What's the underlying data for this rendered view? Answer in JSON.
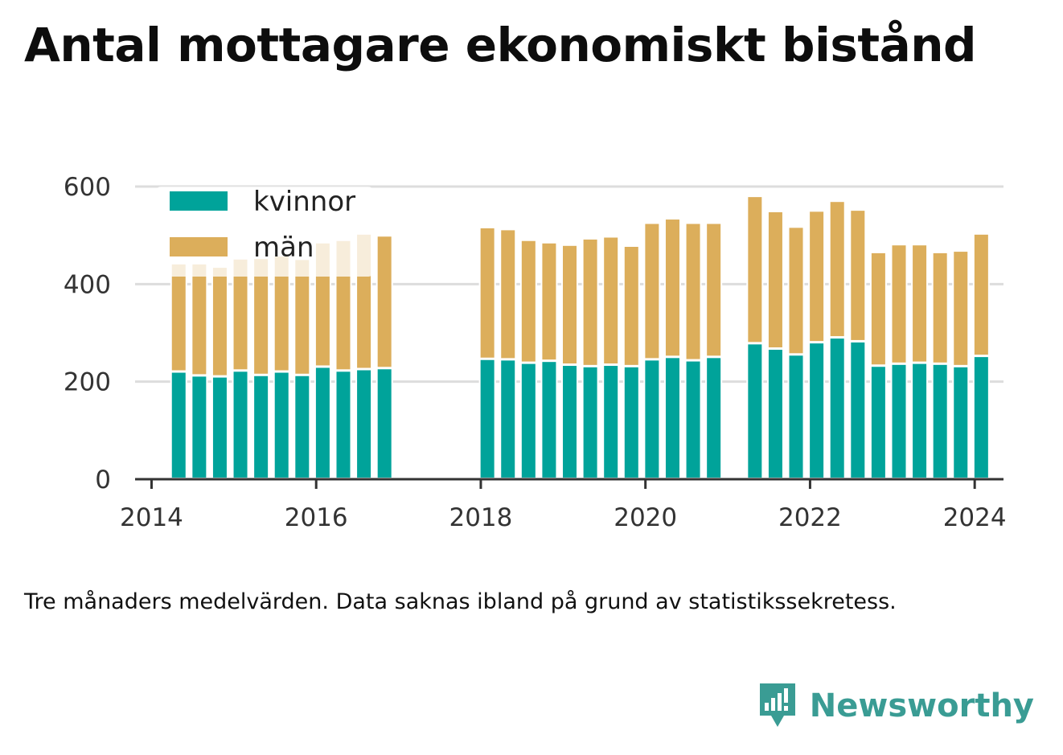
{
  "title": "Antal mottagare ekonomiskt bistånd",
  "footnote": "Tre månaders medelvärden. Data saknas ibland på grund av statistikssekretess.",
  "brand": {
    "name": "Newsworthy",
    "icon": "newsworthy-logo-icon",
    "color": "#3a9c94"
  },
  "chart_data": {
    "type": "bar",
    "stacked": true,
    "title": "Antal mottagare ekonomiskt bistånd",
    "xlabel": "",
    "ylabel": "",
    "ylim": [
      0,
      600
    ],
    "xlim": [
      2013.8,
      2024.35
    ],
    "yticks": [
      0,
      200,
      400,
      600
    ],
    "xticks": [
      2014,
      2016,
      2018,
      2020,
      2022,
      2024
    ],
    "grid": true,
    "legend_position": "top-left",
    "colors": {
      "kvinnor": "#00a39a",
      "män": "#dcae5b"
    },
    "x": [
      2014.33,
      2014.58,
      2014.83,
      2015.08,
      2015.33,
      2015.58,
      2015.83,
      2016.08,
      2016.33,
      2016.58,
      2016.83,
      2018.08,
      2018.33,
      2018.58,
      2018.83,
      2019.08,
      2019.33,
      2019.58,
      2019.83,
      2020.08,
      2020.33,
      2020.58,
      2020.83,
      2021.33,
      2021.58,
      2021.83,
      2022.08,
      2022.33,
      2022.58,
      2022.83,
      2023.08,
      2023.33,
      2023.58,
      2023.83,
      2024.08
    ],
    "series": [
      {
        "name": "kvinnor",
        "values": [
          220,
          212,
          210,
          222,
          213,
          220,
          213,
          230,
          222,
          225,
          227,
          246,
          245,
          238,
          242,
          234,
          231,
          234,
          231,
          245,
          250,
          243,
          250,
          278,
          267,
          255,
          280,
          290,
          282,
          232,
          236,
          238,
          236,
          231,
          252
        ]
      },
      {
        "name": "män",
        "values": [
          222,
          230,
          225,
          230,
          240,
          238,
          238,
          255,
          268,
          278,
          272,
          270,
          267,
          252,
          243,
          246,
          262,
          263,
          247,
          280,
          284,
          282,
          275,
          302,
          282,
          262,
          270,
          280,
          270,
          233,
          245,
          243,
          229,
          237,
          251
        ]
      }
    ]
  }
}
